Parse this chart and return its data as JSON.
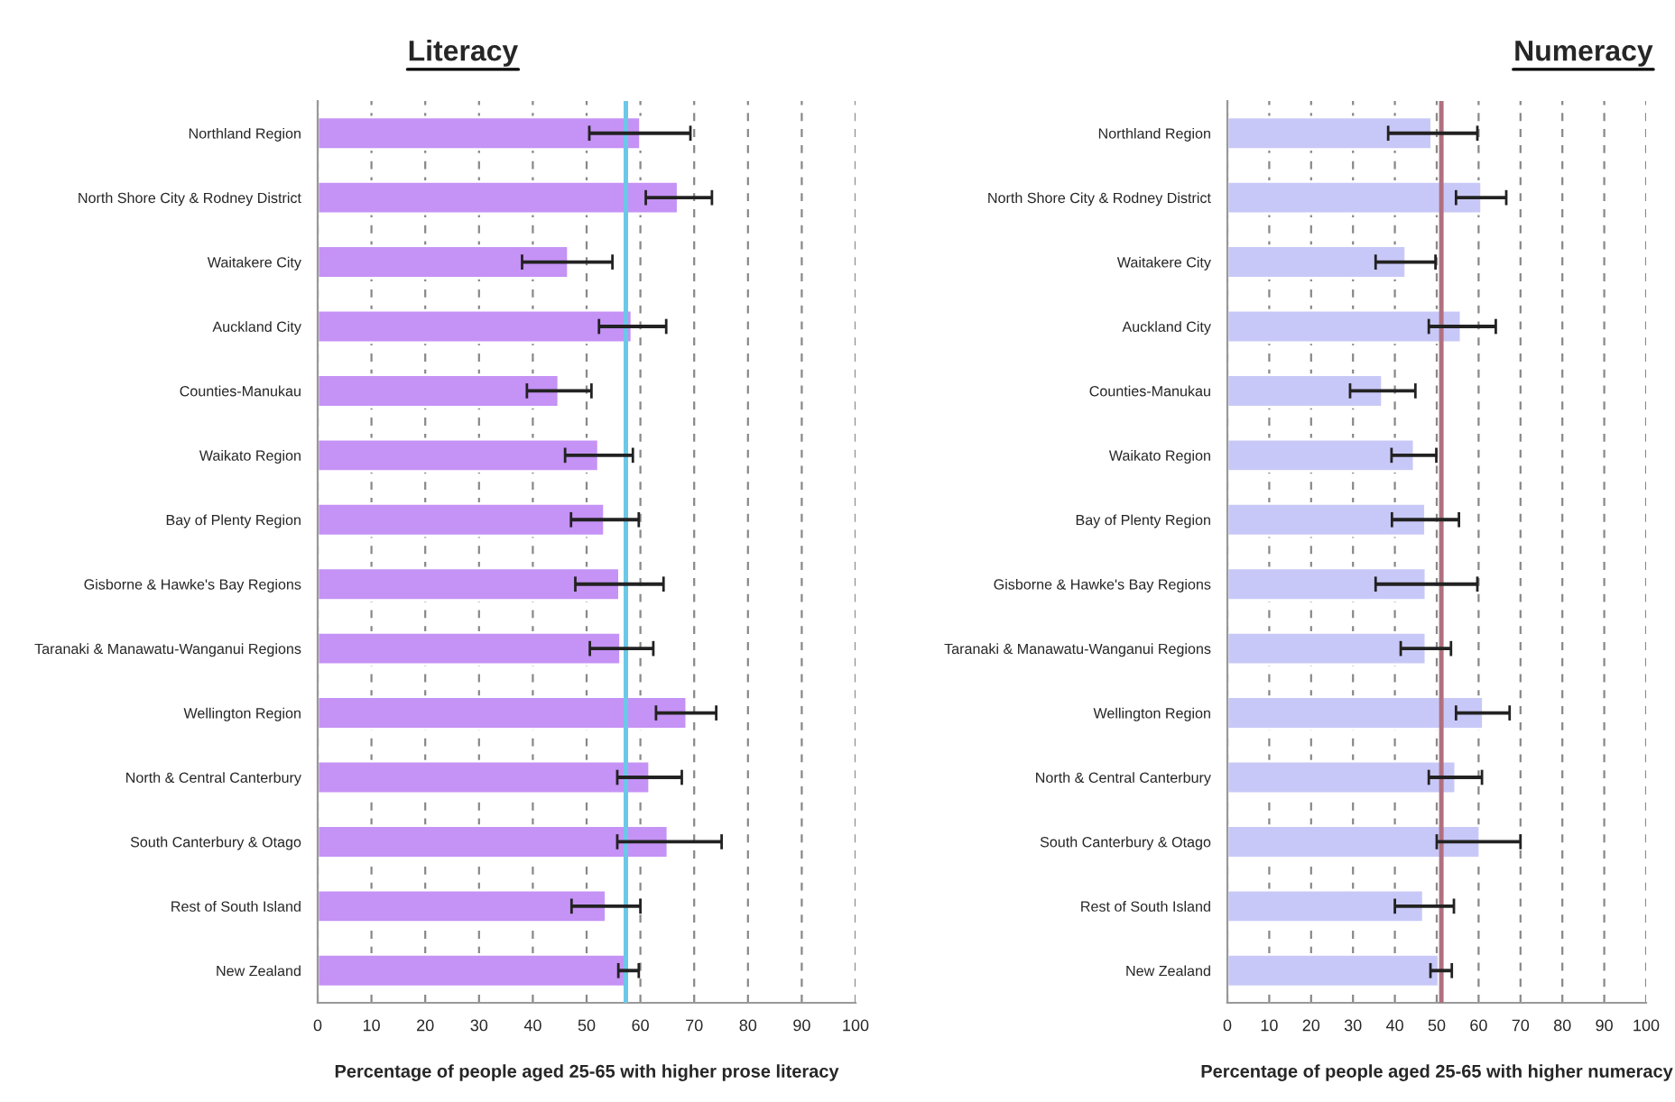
{
  "chart_data": [
    {
      "type": "bar",
      "orientation": "horizontal",
      "title": "Literacy",
      "xlabel": "Percentage of people aged 25-65 with higher prose literacy",
      "categories": [
        "Northland Region",
        "North Shore City & Rodney District",
        "Waitakere City",
        "Auckland City",
        "Counties-Manukau",
        "Waikato Region",
        "Bay of Plenty Region",
        "Gisborne & Hawke's Bay Regions",
        "Taranaki & Manawatu-Wanganui Regions",
        "Wellington Region",
        "North & Central Canterbury",
        "South Canterbury & Otago",
        "Rest of South Island",
        "New Zealand"
      ],
      "series": [
        {
          "color": "#c592f5",
          "values": [
            60,
            67,
            46.6,
            58.4,
            44.8,
            52.2,
            53.3,
            56.1,
            56.3,
            68.6,
            61.7,
            65.1,
            53.6,
            57.7
          ],
          "errors": [
            [
              50.5,
              69.3
            ],
            [
              61,
              73.3
            ],
            [
              38,
              54.8
            ],
            [
              52.3,
              64.8
            ],
            [
              38.9,
              50.9
            ],
            [
              46,
              58.6
            ],
            [
              47.1,
              59.7
            ],
            [
              47.9,
              64.3
            ],
            [
              50.6,
              62.4
            ],
            [
              62.9,
              74.1
            ],
            [
              55.7,
              67.7
            ],
            [
              55.7,
              75.1
            ],
            [
              47.2,
              60
            ],
            [
              55.9,
              59.7
            ]
          ]
        }
      ],
      "ref_lines": [
        {
          "axis": "x",
          "value": 57.3,
          "color": "#6cc8e8"
        }
      ],
      "xlim": [
        0,
        100
      ],
      "xticks": [
        0,
        10,
        20,
        30,
        40,
        50,
        60,
        70,
        80,
        90,
        100
      ],
      "grid": "x"
    },
    {
      "type": "bar",
      "orientation": "horizontal",
      "title": "Numeracy",
      "xlabel": "Percentage of people aged 25-65 with higher numeracy",
      "categories": [
        "Northland Region",
        "North Shore City & Rodney District",
        "Waitakere City",
        "Auckland City",
        "Counties-Manukau",
        "Waikato Region",
        "Bay of Plenty Region",
        "Gisborne & Hawke's Bay Regions",
        "Taranaki & Manawatu-Wanganui Regions",
        "Wellington Region",
        "North & Central Canterbury",
        "South Canterbury & Otago",
        "Rest of South Island",
        "New Zealand"
      ],
      "series": [
        {
          "color": "#c8c8f8",
          "values": [
            48.8,
            60.7,
            42.6,
            55.8,
            37,
            44.6,
            47.3,
            47.4,
            47.4,
            61.1,
            54.5,
            60.3,
            46.8,
            50.5
          ],
          "errors": [
            [
              38.4,
              59.7
            ],
            [
              54.6,
              66.6
            ],
            [
              35.4,
              49.7
            ],
            [
              48.1,
              64.1
            ],
            [
              29.3,
              44.9
            ],
            [
              39.2,
              49.9
            ],
            [
              39.3,
              55.3
            ],
            [
              35.4,
              59.7
            ],
            [
              41.4,
              53.4
            ],
            [
              54.6,
              67.4
            ],
            [
              48.1,
              60.8
            ],
            [
              50,
              70
            ],
            [
              40,
              54.1
            ],
            [
              48.5,
              53.6
            ]
          ]
        }
      ],
      "ref_lines": [
        {
          "axis": "x",
          "value": 51.1,
          "color": "#b07080"
        }
      ],
      "xlim": [
        0,
        100
      ],
      "xticks": [
        0,
        10,
        20,
        30,
        40,
        50,
        60,
        70,
        80,
        90,
        100
      ],
      "grid": "x"
    }
  ]
}
